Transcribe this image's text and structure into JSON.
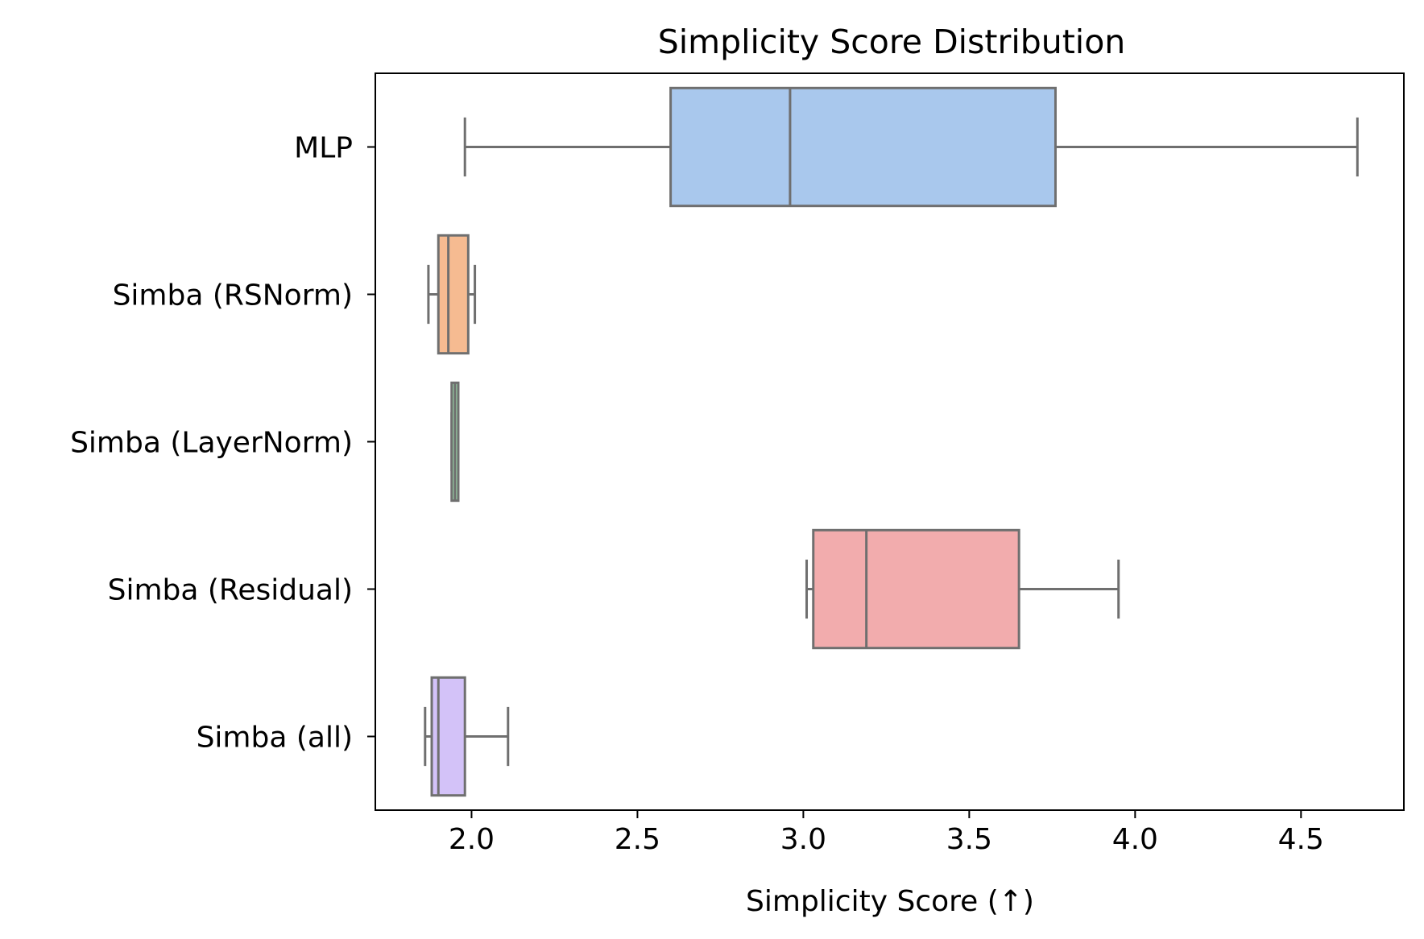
{
  "chart_data": {
    "type": "box",
    "orientation": "horizontal",
    "title": "Simplicity Score Distribution",
    "xlabel": "Simplicity Score (↑)",
    "ylabel": "",
    "xlim": [
      1.71,
      4.81
    ],
    "xticks": [
      2.0,
      2.5,
      3.0,
      3.5,
      4.0,
      4.5
    ],
    "xtick_labels": [
      "2.0",
      "2.5",
      "3.0",
      "3.5",
      "4.0",
      "4.5"
    ],
    "grid": false,
    "legend": "none",
    "categories": [
      "MLP",
      "Simba (RSNorm)",
      "Simba (LayerNorm)",
      "Simba (Residual)",
      "Simba (all)"
    ],
    "boxes": [
      {
        "whisker_low": 1.98,
        "q1": 2.6,
        "median": 2.96,
        "q3": 3.76,
        "whisker_high": 4.67,
        "color": "#a9c8ed"
      },
      {
        "whisker_low": 1.87,
        "q1": 1.9,
        "median": 1.93,
        "q3": 1.99,
        "whisker_high": 2.01,
        "color": "#f6bb91"
      },
      {
        "whisker_low": 1.94,
        "q1": 1.94,
        "median": 1.95,
        "q3": 1.96,
        "whisker_high": 1.96,
        "color": "#9bd4a8"
      },
      {
        "whisker_low": 3.01,
        "q1": 3.03,
        "median": 3.19,
        "q3": 3.65,
        "whisker_high": 3.95,
        "color": "#f2acad"
      },
      {
        "whisker_low": 1.86,
        "q1": 1.88,
        "median": 1.9,
        "q3": 1.98,
        "whisker_high": 2.11,
        "color": "#d3c2f8"
      }
    ],
    "line_color": "#6f6f6f"
  }
}
